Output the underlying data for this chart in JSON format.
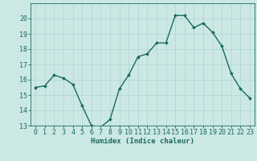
{
  "x": [
    0,
    1,
    2,
    3,
    4,
    5,
    6,
    7,
    8,
    9,
    10,
    11,
    12,
    13,
    14,
    15,
    16,
    17,
    18,
    19,
    20,
    21,
    22,
    23
  ],
  "y": [
    15.5,
    15.6,
    16.3,
    16.1,
    15.7,
    14.3,
    13.0,
    12.9,
    13.4,
    15.4,
    16.3,
    17.5,
    17.7,
    18.4,
    18.4,
    20.2,
    20.2,
    19.4,
    19.7,
    19.1,
    18.2,
    16.4,
    15.4,
    14.8
  ],
  "line_color": "#1a6b5a",
  "marker": "D",
  "marker_size": 2.0,
  "line_width": 1.0,
  "bg_color": "#cce8e5",
  "grid_color": "#aed4d0",
  "xlabel": "Humidex (Indice chaleur)",
  "xlabel_fontsize": 6.5,
  "tick_fontsize": 6,
  "ylim": [
    13,
    21
  ],
  "xlim": [
    -0.5,
    23.5
  ],
  "yticks": [
    13,
    14,
    15,
    16,
    17,
    18,
    19,
    20
  ],
  "xticks": [
    0,
    1,
    2,
    3,
    4,
    5,
    6,
    7,
    8,
    9,
    10,
    11,
    12,
    13,
    14,
    15,
    16,
    17,
    18,
    19,
    20,
    21,
    22,
    23
  ],
  "spine_color": "#1a6b5a",
  "tick_color": "#1a6b5a"
}
